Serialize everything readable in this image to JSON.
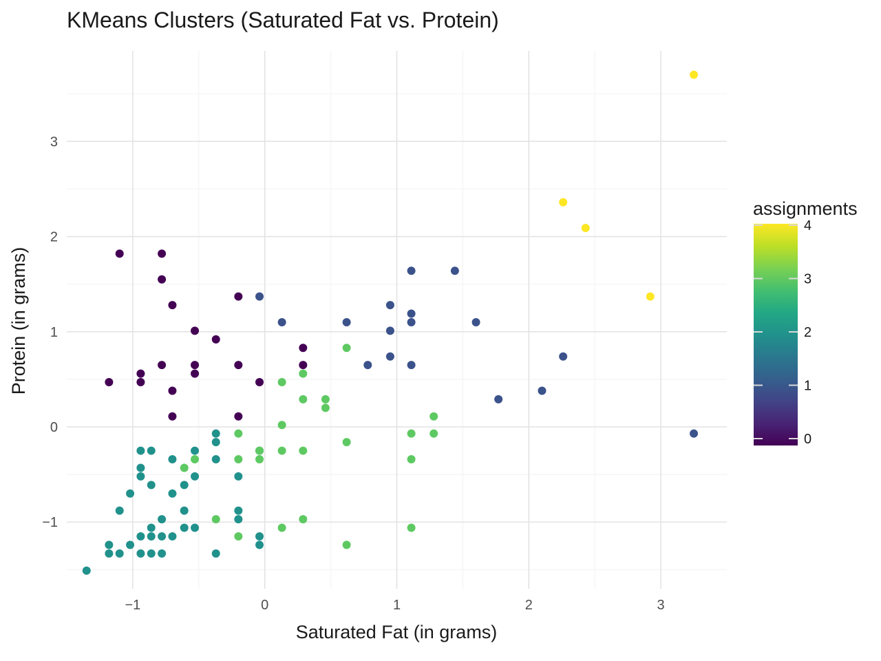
{
  "chart_data": {
    "type": "scatter",
    "title": "KMeans Clusters (Saturated Fat vs. Protein)",
    "xlabel": "Saturated Fat (in grams)",
    "ylabel": "Protein (in grams)",
    "xlim": [
      -1.5,
      3.5
    ],
    "ylim": [
      -1.7,
      3.95
    ],
    "x_ticks": [
      -1,
      0,
      1,
      2,
      3
    ],
    "x_tick_labels": [
      "−1",
      "0",
      "1",
      "2",
      "3"
    ],
    "y_ticks": [
      -1,
      0,
      1,
      2,
      3
    ],
    "y_tick_labels": [
      "−1",
      "0",
      "1",
      "2",
      "3"
    ],
    "grid": true,
    "legend": {
      "title": "assignments",
      "placement": "right",
      "min": 0,
      "max": 4,
      "ticks": [
        0,
        1,
        2,
        3,
        4
      ],
      "tick_labels": [
        "0",
        "1",
        "2",
        "3",
        "4"
      ]
    },
    "colors": {
      "0": "#440154",
      "1": "#3b528b",
      "2": "#21918c",
      "3": "#5ec962",
      "4": "#fde725"
    },
    "points": [
      {
        "x": -1.1,
        "y": 1.82,
        "c": 0
      },
      {
        "x": -0.78,
        "y": 1.82,
        "c": 0
      },
      {
        "x": -0.78,
        "y": 1.55,
        "c": 0
      },
      {
        "x": -0.7,
        "y": 1.28,
        "c": 0
      },
      {
        "x": -0.2,
        "y": 1.37,
        "c": 0
      },
      {
        "x": -0.53,
        "y": 1.01,
        "c": 0
      },
      {
        "x": -0.37,
        "y": 0.92,
        "c": 0
      },
      {
        "x": 0.29,
        "y": 0.83,
        "c": 0
      },
      {
        "x": 0.29,
        "y": 0.65,
        "c": 0
      },
      {
        "x": -0.78,
        "y": 0.65,
        "c": 0
      },
      {
        "x": -0.53,
        "y": 0.65,
        "c": 0
      },
      {
        "x": -0.2,
        "y": 0.65,
        "c": 0
      },
      {
        "x": -0.94,
        "y": 0.56,
        "c": 0
      },
      {
        "x": -0.53,
        "y": 0.56,
        "c": 0
      },
      {
        "x": -1.18,
        "y": 0.47,
        "c": 0
      },
      {
        "x": -0.94,
        "y": 0.47,
        "c": 0
      },
      {
        "x": -0.04,
        "y": 0.47,
        "c": 0
      },
      {
        "x": -0.7,
        "y": 0.38,
        "c": 0
      },
      {
        "x": -0.7,
        "y": 0.11,
        "c": 0
      },
      {
        "x": -0.2,
        "y": 0.11,
        "c": 0
      },
      {
        "x": -0.04,
        "y": 1.37,
        "c": 1
      },
      {
        "x": 1.11,
        "y": 1.64,
        "c": 1
      },
      {
        "x": 1.44,
        "y": 1.64,
        "c": 1
      },
      {
        "x": 0.95,
        "y": 1.28,
        "c": 1
      },
      {
        "x": 1.11,
        "y": 1.19,
        "c": 1
      },
      {
        "x": 0.13,
        "y": 1.1,
        "c": 1
      },
      {
        "x": 0.62,
        "y": 1.1,
        "c": 1
      },
      {
        "x": 1.11,
        "y": 1.1,
        "c": 1
      },
      {
        "x": 1.6,
        "y": 1.1,
        "c": 1
      },
      {
        "x": 0.95,
        "y": 1.01,
        "c": 1
      },
      {
        "x": 0.95,
        "y": 0.74,
        "c": 1
      },
      {
        "x": 2.26,
        "y": 0.74,
        "c": 1
      },
      {
        "x": 0.78,
        "y": 0.65,
        "c": 1
      },
      {
        "x": 1.11,
        "y": 0.65,
        "c": 1
      },
      {
        "x": 2.1,
        "y": 0.38,
        "c": 1
      },
      {
        "x": 1.77,
        "y": 0.29,
        "c": 1
      },
      {
        "x": 3.25,
        "y": -0.07,
        "c": 1
      },
      {
        "x": -0.37,
        "y": -0.07,
        "c": 2
      },
      {
        "x": -0.37,
        "y": -0.16,
        "c": 2
      },
      {
        "x": -0.94,
        "y": -0.25,
        "c": 2
      },
      {
        "x": -0.86,
        "y": -0.25,
        "c": 2
      },
      {
        "x": -0.53,
        "y": -0.25,
        "c": 2
      },
      {
        "x": -0.04,
        "y": -0.25,
        "c": 2
      },
      {
        "x": -0.7,
        "y": -0.34,
        "c": 2
      },
      {
        "x": -0.37,
        "y": -0.34,
        "c": 2
      },
      {
        "x": -0.94,
        "y": -0.43,
        "c": 2
      },
      {
        "x": -0.94,
        "y": -0.52,
        "c": 2
      },
      {
        "x": -0.53,
        "y": -0.52,
        "c": 2
      },
      {
        "x": -0.2,
        "y": -0.52,
        "c": 2
      },
      {
        "x": -0.86,
        "y": -0.61,
        "c": 2
      },
      {
        "x": -0.61,
        "y": -0.61,
        "c": 2
      },
      {
        "x": -1.02,
        "y": -0.7,
        "c": 2
      },
      {
        "x": -0.7,
        "y": -0.7,
        "c": 2
      },
      {
        "x": -1.1,
        "y": -0.88,
        "c": 2
      },
      {
        "x": -0.61,
        "y": -0.88,
        "c": 2
      },
      {
        "x": -0.2,
        "y": -0.88,
        "c": 2
      },
      {
        "x": -0.78,
        "y": -0.97,
        "c": 2
      },
      {
        "x": -0.2,
        "y": -0.97,
        "c": 2
      },
      {
        "x": -0.86,
        "y": -1.06,
        "c": 2
      },
      {
        "x": -0.61,
        "y": -1.06,
        "c": 2
      },
      {
        "x": -0.53,
        "y": -1.06,
        "c": 2
      },
      {
        "x": -0.94,
        "y": -1.15,
        "c": 2
      },
      {
        "x": -0.86,
        "y": -1.15,
        "c": 2
      },
      {
        "x": -0.78,
        "y": -1.15,
        "c": 2
      },
      {
        "x": -0.7,
        "y": -1.15,
        "c": 2
      },
      {
        "x": -0.04,
        "y": -1.15,
        "c": 2
      },
      {
        "x": -1.18,
        "y": -1.24,
        "c": 2
      },
      {
        "x": -1.02,
        "y": -1.24,
        "c": 2
      },
      {
        "x": -0.04,
        "y": -1.24,
        "c": 2
      },
      {
        "x": -1.18,
        "y": -1.33,
        "c": 2
      },
      {
        "x": -1.1,
        "y": -1.33,
        "c": 2
      },
      {
        "x": -0.94,
        "y": -1.33,
        "c": 2
      },
      {
        "x": -0.86,
        "y": -1.33,
        "c": 2
      },
      {
        "x": -0.78,
        "y": -1.33,
        "c": 2
      },
      {
        "x": -0.37,
        "y": -1.33,
        "c": 2
      },
      {
        "x": -1.35,
        "y": -1.51,
        "c": 2
      },
      {
        "x": 0.62,
        "y": 0.83,
        "c": 3
      },
      {
        "x": 0.29,
        "y": 0.56,
        "c": 3
      },
      {
        "x": 0.13,
        "y": 0.47,
        "c": 3
      },
      {
        "x": 0.29,
        "y": 0.29,
        "c": 3
      },
      {
        "x": 0.46,
        "y": 0.29,
        "c": 3
      },
      {
        "x": 0.46,
        "y": 0.2,
        "c": 3
      },
      {
        "x": 1.28,
        "y": 0.11,
        "c": 3
      },
      {
        "x": 0.13,
        "y": 0.02,
        "c": 3
      },
      {
        "x": -0.2,
        "y": -0.07,
        "c": 3
      },
      {
        "x": 1.11,
        "y": -0.07,
        "c": 3
      },
      {
        "x": 1.28,
        "y": -0.07,
        "c": 3
      },
      {
        "x": 0.62,
        "y": -0.16,
        "c": 3
      },
      {
        "x": -0.04,
        "y": -0.25,
        "c": 3
      },
      {
        "x": 0.13,
        "y": -0.25,
        "c": 3
      },
      {
        "x": 0.29,
        "y": -0.25,
        "c": 3
      },
      {
        "x": -0.53,
        "y": -0.34,
        "c": 3
      },
      {
        "x": -0.2,
        "y": -0.34,
        "c": 3
      },
      {
        "x": -0.04,
        "y": -0.34,
        "c": 3
      },
      {
        "x": 1.11,
        "y": -0.34,
        "c": 3
      },
      {
        "x": -0.61,
        "y": -0.43,
        "c": 3
      },
      {
        "x": -0.37,
        "y": -0.97,
        "c": 3
      },
      {
        "x": 0.29,
        "y": -0.97,
        "c": 3
      },
      {
        "x": 0.13,
        "y": -1.06,
        "c": 3
      },
      {
        "x": 1.11,
        "y": -1.06,
        "c": 3
      },
      {
        "x": -0.2,
        "y": -1.15,
        "c": 3
      },
      {
        "x": 0.62,
        "y": -1.24,
        "c": 3
      },
      {
        "x": 3.25,
        "y": 3.7,
        "c": 4
      },
      {
        "x": 2.26,
        "y": 2.36,
        "c": 4
      },
      {
        "x": 2.43,
        "y": 2.09,
        "c": 4
      },
      {
        "x": 2.92,
        "y": 1.37,
        "c": 4
      }
    ]
  }
}
